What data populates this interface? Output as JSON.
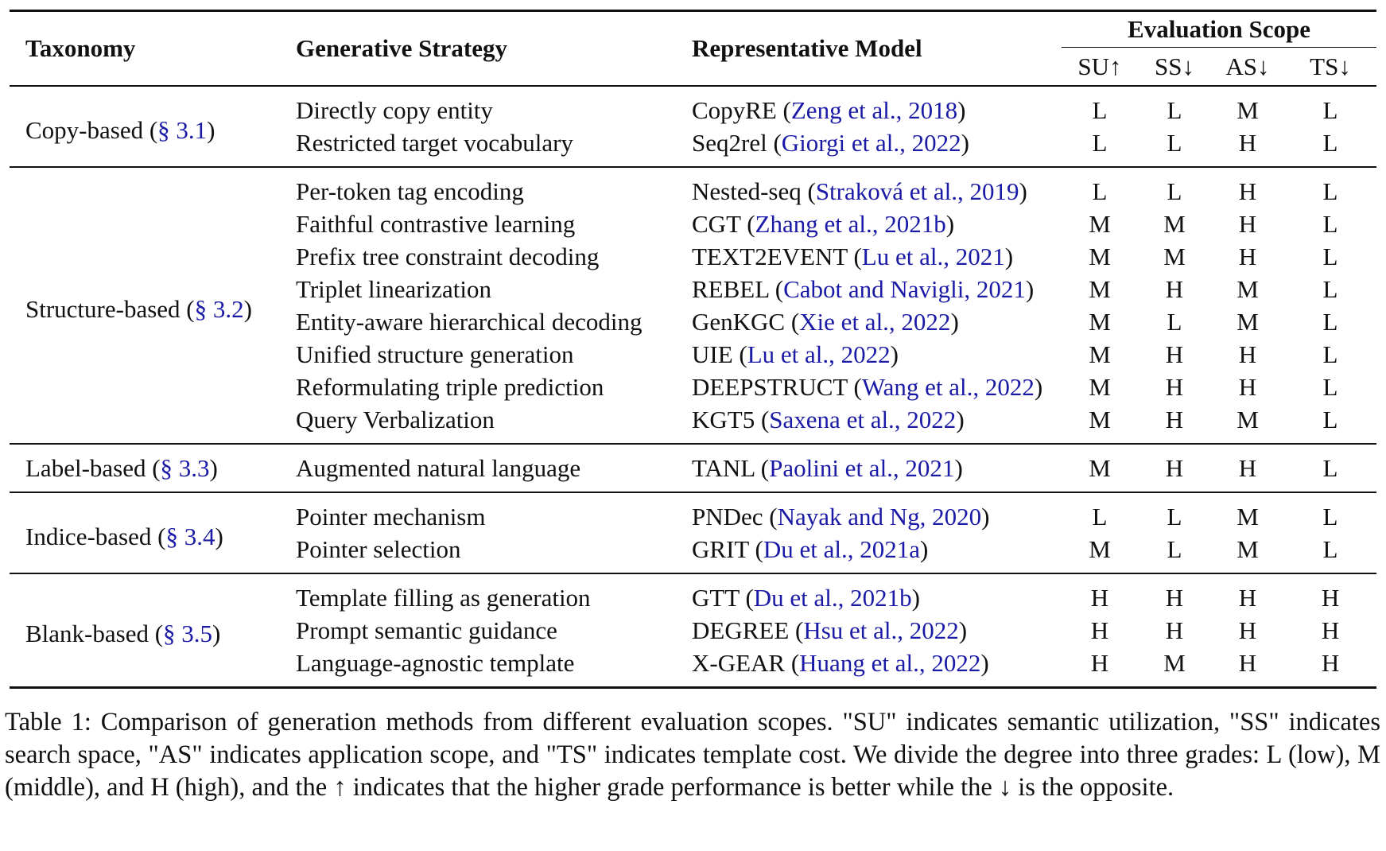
{
  "table": {
    "headers": {
      "taxonomy": "Taxonomy",
      "strategy": "Generative Strategy",
      "model": "Representative Model",
      "evaluation_scope": "Evaluation Scope",
      "su": "SU↑",
      "ss": "SS↓",
      "as": "AS↓",
      "ts": "TS↓"
    },
    "groups": [
      {
        "taxonomy": "Copy-based (",
        "section": "§ 3.1",
        "rows": [
          {
            "strategy": "Directly copy entity",
            "model": "CopyRE (",
            "cite": "Zeng et al., 2018",
            "su": "L",
            "ss": "L",
            "as": "M",
            "ts": "L"
          },
          {
            "strategy": "Restricted target vocabulary",
            "model": "Seq2rel (",
            "cite": "Giorgi et al., 2022",
            "su": "L",
            "ss": "L",
            "as": "H",
            "ts": "L"
          }
        ]
      },
      {
        "taxonomy": "Structure-based (",
        "section": "§ 3.2",
        "rows": [
          {
            "strategy": "Per-token tag encoding",
            "model": "Nested-seq (",
            "cite": "Straková et al., 2019",
            "su": "L",
            "ss": "L",
            "as": "H",
            "ts": "L"
          },
          {
            "strategy": "Faithful contrastive learning",
            "model": "CGT (",
            "cite": "Zhang et al., 2021b",
            "su": "M",
            "ss": "M",
            "as": "H",
            "ts": "L"
          },
          {
            "strategy": "Prefix tree constraint decoding",
            "model": "TEXT2EVENT (",
            "cite": "Lu et al., 2021",
            "su": "M",
            "ss": "M",
            "as": "H",
            "ts": "L"
          },
          {
            "strategy": "Triplet linearization",
            "model": "REBEL (",
            "cite": "Cabot and Navigli, 2021",
            "su": "M",
            "ss": "H",
            "as": "M",
            "ts": "L"
          },
          {
            "strategy": "Entity-aware hierarchical decoding",
            "model": "GenKGC (",
            "cite": "Xie et al., 2022",
            "su": "M",
            "ss": "L",
            "as": "M",
            "ts": "L"
          },
          {
            "strategy": "Unified structure generation",
            "model": "UIE (",
            "cite": "Lu et al., 2022",
            "su": "M",
            "ss": "H",
            "as": "H",
            "ts": "L"
          },
          {
            "strategy": "Reformulating triple prediction",
            "model": "DEEPSTRUCT (",
            "cite": "Wang et al., 2022",
            "su": "M",
            "ss": "H",
            "as": "H",
            "ts": "L"
          },
          {
            "strategy": "Query Verbalization",
            "model": "KGT5 (",
            "cite": "Saxena et al., 2022",
            "su": "M",
            "ss": "H",
            "as": "M",
            "ts": "L"
          }
        ]
      },
      {
        "taxonomy": "Label-based (",
        "section": "§ 3.3",
        "rows": [
          {
            "strategy": "Augmented natural language",
            "model": "TANL (",
            "cite": "Paolini et al., 2021",
            "su": "M",
            "ss": "H",
            "as": "H",
            "ts": "L"
          }
        ]
      },
      {
        "taxonomy": "Indice-based (",
        "section": "§ 3.4",
        "rows": [
          {
            "strategy": "Pointer mechanism",
            "model": "PNDec (",
            "cite": "Nayak and Ng, 2020",
            "su": "L",
            "ss": "L",
            "as": "M",
            "ts": "L"
          },
          {
            "strategy": "Pointer selection",
            "model": "GRIT (",
            "cite": "Du et al., 2021a",
            "su": "M",
            "ss": "L",
            "as": "M",
            "ts": "L"
          }
        ]
      },
      {
        "taxonomy": "Blank-based (",
        "section": "§ 3.5",
        "rows": [
          {
            "strategy": "Template filling as generation",
            "model": "GTT (",
            "cite": "Du et al., 2021b",
            "su": "H",
            "ss": "H",
            "as": "H",
            "ts": "H"
          },
          {
            "strategy": "Prompt semantic guidance",
            "model": "DEGREE (",
            "cite": "Hsu et al., 2022",
            "su": "H",
            "ss": "H",
            "as": "H",
            "ts": "H"
          },
          {
            "strategy": "Language-agnostic template",
            "model": "X-GEAR (",
            "cite": "Huang et al., 2022",
            "su": "H",
            "ss": "M",
            "as": "H",
            "ts": "H"
          }
        ]
      }
    ]
  },
  "caption": "Table 1: Comparison of generation methods from different evaluation scopes. \"SU\" indicates semantic utilization, \"SS\" indicates search space, \"AS\" indicates application scope, and \"TS\" indicates template cost. We divide the degree into three grades: L (low), M (middle), and H (high), and the ↑ indicates that the higher grade performance is better while the ↓ is the opposite."
}
